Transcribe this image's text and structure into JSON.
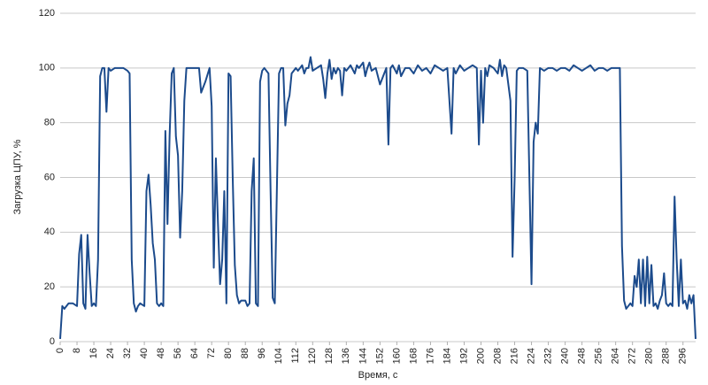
{
  "chart_data": {
    "type": "line",
    "x_label": "Время, с",
    "y_label": "Загрузка ЦПУ, %",
    "xlim": [
      0,
      302
    ],
    "ylim": [
      0,
      120
    ],
    "xticks": [
      0,
      8,
      16,
      24,
      32,
      40,
      48,
      56,
      64,
      72,
      80,
      88,
      96,
      104,
      112,
      120,
      128,
      136,
      144,
      152,
      160,
      168,
      176,
      184,
      192,
      200,
      208,
      216,
      224,
      232,
      240,
      248,
      256,
      264,
      272,
      280,
      288,
      296
    ],
    "yticks": [
      0,
      20,
      40,
      60,
      80,
      100,
      120
    ],
    "grid": true,
    "x": [
      0,
      1,
      2,
      4,
      6,
      8,
      9,
      10,
      11,
      12,
      13,
      14,
      15,
      16,
      17,
      18,
      19,
      20,
      21,
      22,
      23,
      24,
      26,
      28,
      30,
      32,
      33,
      34,
      35,
      36,
      37,
      38,
      40,
      41,
      42,
      43,
      44,
      45,
      46,
      47,
      48,
      49,
      50,
      51,
      52,
      53,
      54,
      55,
      56,
      57,
      58,
      59,
      60,
      62,
      64,
      66,
      67,
      69,
      71,
      72,
      73,
      74,
      75,
      76,
      77,
      78,
      79,
      80,
      81,
      82,
      83,
      84,
      85,
      86,
      88,
      89,
      90,
      91,
      92,
      93,
      94,
      95,
      96,
      97,
      98,
      99,
      100,
      101,
      102,
      104,
      105,
      106,
      107,
      108,
      109,
      110,
      112,
      113,
      115,
      116,
      117,
      118,
      119,
      120,
      122,
      124,
      125,
      126,
      127,
      128,
      129,
      130,
      131,
      132,
      133,
      134,
      135,
      136,
      138,
      140,
      141,
      142,
      144,
      145,
      146,
      147,
      148,
      150,
      152,
      154,
      155,
      156,
      157,
      158,
      160,
      161,
      162,
      164,
      166,
      168,
      170,
      172,
      174,
      176,
      178,
      180,
      182,
      184,
      186,
      187,
      188,
      190,
      192,
      194,
      196,
      198,
      199,
      200,
      201,
      202,
      203,
      204,
      206,
      208,
      209,
      210,
      211,
      212,
      214,
      215,
      216,
      217,
      218,
      220,
      222,
      224,
      225,
      226,
      227,
      228,
      230,
      232,
      234,
      236,
      238,
      240,
      242,
      244,
      246,
      248,
      250,
      252,
      254,
      256,
      258,
      260,
      262,
      264,
      266,
      267,
      268,
      269,
      270,
      271,
      272,
      273,
      274,
      275,
      276,
      277,
      278,
      279,
      280,
      281,
      282,
      283,
      284,
      285,
      286,
      287,
      288,
      289,
      290,
      291,
      292,
      293,
      294,
      295,
      296,
      297,
      298,
      299,
      300,
      301,
      302
    ],
    "series": [
      {
        "color": "#1c4b8c",
        "values": [
          1,
          13,
          12,
          14,
          14,
          13,
          32,
          39,
          14,
          12,
          39,
          25,
          13,
          14,
          13,
          30,
          97,
          100,
          100,
          84,
          100,
          99,
          100,
          100,
          100,
          99,
          98,
          30,
          14,
          11,
          13,
          14,
          13,
          55,
          61,
          50,
          36,
          30,
          14,
          13,
          14,
          13,
          77,
          43,
          75,
          98,
          100,
          75,
          68,
          38,
          55,
          88,
          100,
          100,
          100,
          100,
          91,
          95,
          100,
          86,
          27,
          67,
          43,
          21,
          30,
          55,
          14,
          98,
          97,
          60,
          28,
          17,
          14,
          15,
          15,
          13,
          14,
          55,
          67,
          14,
          13,
          95,
          99,
          100,
          99,
          98,
          55,
          16,
          14,
          98,
          100,
          100,
          79,
          87,
          90,
          98,
          100,
          99,
          101,
          98,
          100,
          100,
          104,
          99,
          100,
          101,
          96,
          89,
          98,
          103,
          96,
          100,
          98,
          100,
          99,
          90,
          100,
          99,
          101,
          98,
          101,
          100,
          102,
          97,
          100,
          102,
          99,
          100,
          94,
          98,
          100,
          72,
          100,
          101,
          98,
          101,
          97,
          100,
          100,
          98,
          101,
          99,
          100,
          98,
          101,
          100,
          99,
          100,
          76,
          100,
          98,
          101,
          99,
          100,
          101,
          100,
          72,
          99,
          80,
          100,
          97,
          101,
          100,
          98,
          103,
          97,
          101,
          100,
          88,
          31,
          60,
          99,
          100,
          100,
          99,
          21,
          73,
          80,
          76,
          100,
          99,
          100,
          100,
          99,
          100,
          100,
          99,
          101,
          100,
          99,
          100,
          101,
          99,
          100,
          100,
          99,
          100,
          100,
          100,
          35,
          15,
          12,
          13,
          14,
          13,
          24,
          20,
          30,
          14,
          30,
          13,
          31,
          14,
          28,
          13,
          14,
          12,
          15,
          17,
          25,
          14,
          13,
          14,
          13,
          53,
          30,
          13,
          30,
          14,
          15,
          12,
          17,
          14,
          17,
          1
        ]
      }
    ]
  }
}
